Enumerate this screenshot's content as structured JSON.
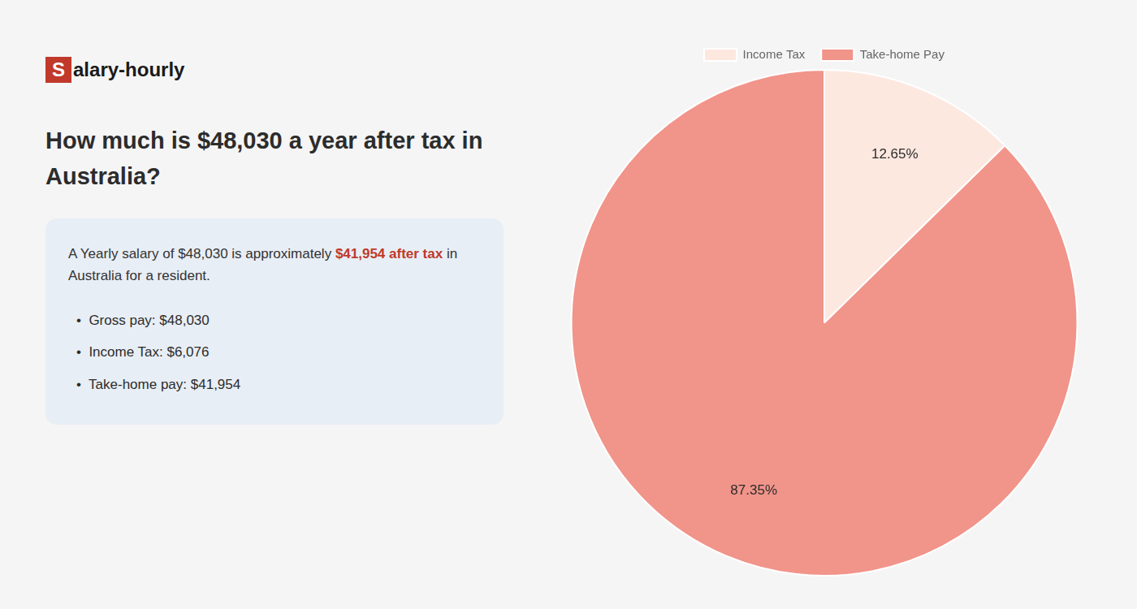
{
  "chart_data": {
    "type": "pie",
    "title": [
      "How much is $48,030 a year after tax in",
      "Australia?"
    ],
    "categories": [
      "Income Tax",
      "Take-home Pay"
    ],
    "values": [
      12.65,
      87.35
    ],
    "value_labels": [
      "12.65%",
      "87.35%"
    ],
    "colors": [
      "#fde8e0",
      "#f1948a"
    ],
    "data_labels": true,
    "legend": "top",
    "annotations": [
      {
        "text": "S",
        "color": "#c0392b"
      },
      {
        "text": "alary-hourly"
      },
      {
        "text": "A Yearly salary of $48,030 is approximately "
      },
      {
        "text": "$41,954 after tax",
        "color": "#c0392b"
      },
      {
        "text": " in"
      },
      {
        "text": "Australia for a resident."
      },
      {
        "text": "•  Gross pay: $48,030"
      },
      {
        "text": "•  Income Tax: $6,076"
      },
      {
        "text": "•  Take-home pay: $41,954"
      }
    ]
  }
}
